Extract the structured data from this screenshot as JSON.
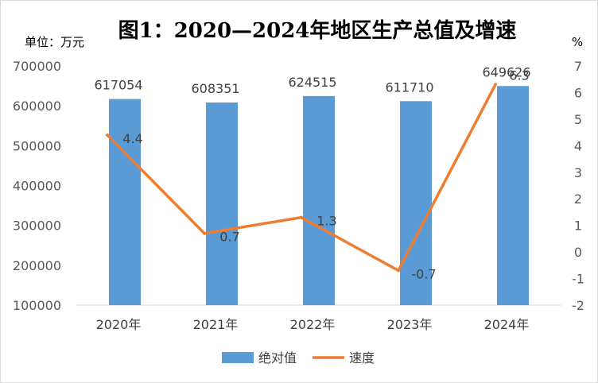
{
  "chart_data": {
    "type": "bar",
    "title": "图1：2020—2024年地区生产总值及增速",
    "y_left_label": "单位：万元",
    "y_right_label": "%",
    "categories": [
      "2020年",
      "2021年",
      "2022年",
      "2023年",
      "2024年"
    ],
    "series": [
      {
        "name": "绝对值",
        "type": "bar",
        "axis": "left",
        "values": [
          617054,
          608351,
          624515,
          611710,
          649626
        ],
        "labels": [
          "617054",
          "608351",
          "624515",
          "611710",
          "649626"
        ],
        "color": "#5b9bd5"
      },
      {
        "name": "速度",
        "type": "line",
        "axis": "right",
        "values": [
          4.4,
          0.7,
          1.3,
          -0.7,
          6.3
        ],
        "labels": [
          "4.4",
          "0.7",
          "1.3",
          "-0.7",
          "6.3"
        ],
        "color": "#ed7d31"
      }
    ],
    "y_left": {
      "min": 100000,
      "max": 700000,
      "ticks": [
        "100000",
        "200000",
        "300000",
        "400000",
        "500000",
        "600000",
        "700000"
      ]
    },
    "y_right": {
      "min": -2,
      "max": 7,
      "ticks": [
        "-2",
        "-1",
        "0",
        "1",
        "2",
        "3",
        "4",
        "5",
        "6",
        "7"
      ]
    },
    "grid": false,
    "legend_position": "bottom"
  }
}
